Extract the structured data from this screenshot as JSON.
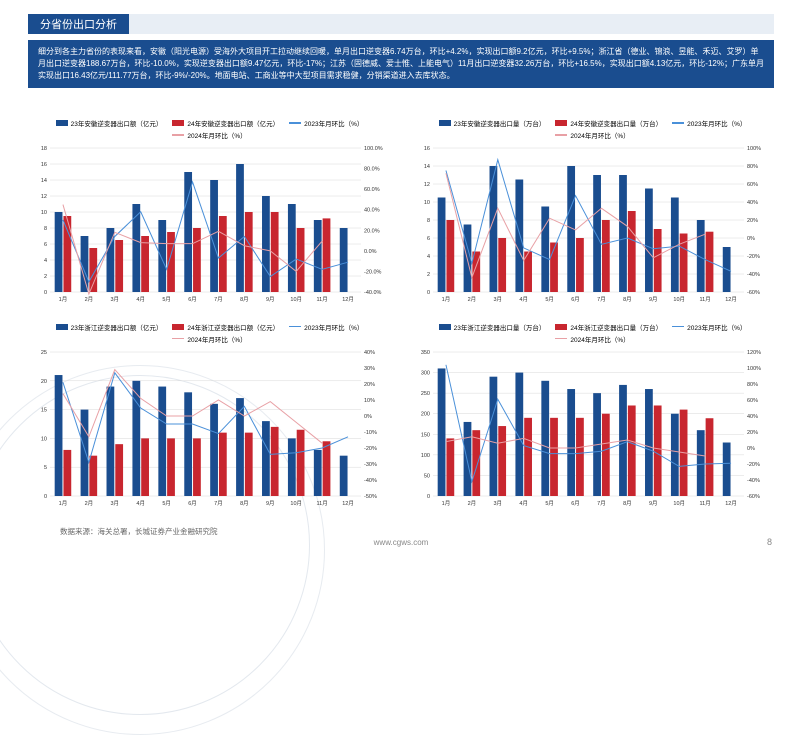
{
  "header": {
    "title": "分省份出口分析"
  },
  "description": "细分到各主力省份的表现来看，安徽（阳光电源）受海外大项目开工拉动继续回暖，单月出口逆变器6.74万台，环比+4.2%，实现出口额9.2亿元，环比+9.5%；浙江省（德业、锦浪、昱能、禾迈、艾罗）单月出口逆变器188.67万台，环比-10.0%，实现逆变器出口额9.47亿元，环比-17%；江苏（固德威、爱士惟、上能电气）11月出口逆变器32.26万台，环比+16.5%，实现出口额4.13亿元，环比-12%；广东单月实现出口16.43亿元/111.77万台，环比-9%/-20%。地面电站、工商业等中大型项目需求稳健，分销渠道进入去库状态。",
  "source": "数据来源：海关总署，长城证券产业金融研究院",
  "footer_url": "www.cgws.com",
  "page_number": "8",
  "colors": {
    "bar2023": "#1a4d8f",
    "bar2024": "#c8262f",
    "line2023": "#4a90d9",
    "line2024": "#e8a0a5",
    "grid": "#d8d8d8",
    "axis_text": "#333333",
    "bg": "#ffffff"
  },
  "months": [
    "1月",
    "2月",
    "3月",
    "4月",
    "5月",
    "6月",
    "7月",
    "8月",
    "9月",
    "10月",
    "11月",
    "12月"
  ],
  "charts": [
    {
      "id": "anhui_value",
      "legend": {
        "bar2023": "23年安徽逆变器出口额（亿元）",
        "bar2024": "24年安徽逆变器出口额（亿元）",
        "line2023": "2023年月环比（%）",
        "line2024": "2024年月环比（%）"
      },
      "y_left": {
        "min": 0,
        "max": 18,
        "step": 2,
        "labels": [
          "0",
          "2",
          "4",
          "6",
          "8",
          "10",
          "12",
          "14",
          "16",
          "18"
        ]
      },
      "y_right": {
        "min": -40,
        "max": 100,
        "step": 20,
        "labels": [
          "-40.0%",
          "-20.0%",
          "0.0%",
          "20.0%",
          "40.0%",
          "60.0%",
          "80.0%",
          "100.0%"
        ]
      },
      "bars2023": [
        10,
        7,
        8,
        11,
        9,
        15,
        14,
        16,
        12,
        11,
        9,
        8
      ],
      "bars2024": [
        9.5,
        5.5,
        6.5,
        7,
        7.5,
        8,
        9.5,
        10,
        10,
        8,
        9.2,
        null
      ],
      "line2023": [
        30,
        -30,
        14,
        38,
        -18,
        67,
        -7,
        14,
        -25,
        -8,
        -18,
        -11
      ],
      "line2024": [
        45,
        -42,
        18,
        8,
        7,
        7,
        19,
        5,
        0,
        -20,
        9.5,
        null
      ]
    },
    {
      "id": "anhui_volume",
      "legend": {
        "bar2023": "23年安徽逆变器出口量（万台）",
        "bar2024": "24年安徽逆变器出口量（万台）",
        "line2023": "2023年月环比（%）",
        "line2024": "2024年月环比（%）"
      },
      "y_left": {
        "min": 0,
        "max": 16,
        "step": 2,
        "labels": [
          "0",
          "2",
          "4",
          "6",
          "8",
          "10",
          "12",
          "14",
          "16"
        ]
      },
      "y_right": {
        "min": -60,
        "max": 100,
        "step": 20,
        "labels": [
          "-60%",
          "-40%",
          "-20%",
          "0%",
          "20%",
          "40%",
          "60%",
          "80%",
          "100%"
        ]
      },
      "bars2023": [
        10.5,
        7.5,
        14,
        12.5,
        9.5,
        14,
        13,
        13,
        11.5,
        10.5,
        8,
        5
      ],
      "bars2024": [
        8,
        4.5,
        6,
        4.5,
        5.5,
        6,
        8,
        9,
        7,
        6.5,
        6.7,
        null
      ],
      "line2023": [
        75,
        -28,
        87,
        -11,
        -24,
        47,
        -7,
        0,
        -12,
        -9,
        -24,
        -37
      ],
      "line2024": [
        72,
        -44,
        33,
        -25,
        22,
        9,
        33,
        13,
        -22,
        -7,
        4.2,
        null
      ]
    },
    {
      "id": "zhejiang_value",
      "legend": {
        "bar2023": "23年浙江逆变器出口额（亿元）",
        "bar2024": "24年浙江逆变器出口额（亿元）",
        "line2023": "2023年月环比（%）",
        "line2024": "2024年月环比（%）"
      },
      "y_left": {
        "min": 0,
        "max": 25,
        "step": 5,
        "labels": [
          "0",
          "5",
          "10",
          "15",
          "20",
          "25"
        ]
      },
      "y_right": {
        "min": -50,
        "max": 40,
        "step": 10,
        "labels": [
          "-50%",
          "-40%",
          "-30%",
          "-20%",
          "-10%",
          "0%",
          "10%",
          "20%",
          "30%",
          "40%"
        ]
      },
      "bars2023": [
        21,
        15,
        19,
        20,
        19,
        18,
        16,
        17,
        13,
        10,
        8,
        7
      ],
      "bars2024": [
        8,
        7,
        9,
        10,
        10,
        10,
        11,
        11,
        12,
        11.5,
        9.5,
        null
      ],
      "line2023": [
        21,
        -29,
        27,
        5,
        -5,
        -5,
        -11,
        6,
        -24,
        -23,
        -20,
        -13
      ],
      "line2024": [
        14,
        -13,
        29,
        11,
        0,
        0,
        10,
        0,
        9,
        -4,
        -17,
        null
      ]
    },
    {
      "id": "zhejiang_volume",
      "legend": {
        "bar2023": "23年浙江逆变器出口量（万台）",
        "bar2024": "24年浙江逆变器出口量（万台）",
        "line2023": "2023年月环比（%）",
        "line2024": "2024年月环比（%）"
      },
      "y_left": {
        "min": 0,
        "max": 350,
        "step": 50,
        "labels": [
          "0",
          "50",
          "100",
          "150",
          "200",
          "250",
          "300",
          "350"
        ]
      },
      "y_right": {
        "min": -60,
        "max": 120,
        "step": 20,
        "labels": [
          "-60%",
          "-40%",
          "-20%",
          "0%",
          "20%",
          "40%",
          "60%",
          "80%",
          "100%",
          "120%"
        ]
      },
      "bars2023": [
        310,
        180,
        290,
        300,
        280,
        260,
        250,
        270,
        260,
        200,
        160,
        130
      ],
      "bars2024": [
        140,
        160,
        170,
        190,
        190,
        190,
        200,
        220,
        220,
        210,
        189,
        null
      ],
      "line2023": [
        104,
        -42,
        61,
        3,
        -7,
        -7,
        -4,
        8,
        -4,
        -23,
        -20,
        -19
      ],
      "line2024": [
        8,
        14,
        6,
        12,
        0,
        0,
        5,
        10,
        0,
        -5,
        -10,
        null
      ]
    }
  ]
}
